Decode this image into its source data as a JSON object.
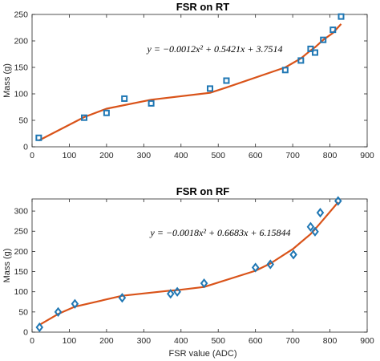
{
  "chart_data": [
    {
      "type": "scatter",
      "title": "FSR on RT",
      "xlabel": "",
      "ylabel": "Mass (g)",
      "xlim": [
        0,
        900
      ],
      "ylim": [
        0,
        250
      ],
      "xticks": [
        0,
        100,
        200,
        300,
        400,
        500,
        600,
        700,
        800,
        900
      ],
      "yticks": [
        0,
        50,
        100,
        150,
        200,
        250
      ],
      "equation": "y = −0.0012x² + 0.5421x + 3.7514",
      "marker": "square",
      "marker_color": "#1f77b4",
      "fit_color": "#d95319",
      "points": [
        [
          18,
          17
        ],
        [
          140,
          55
        ],
        [
          200,
          64
        ],
        [
          248,
          91
        ],
        [
          320,
          82
        ],
        [
          478,
          110
        ],
        [
          522,
          125
        ],
        [
          680,
          145
        ],
        [
          722,
          163
        ],
        [
          748,
          185
        ],
        [
          760,
          178
        ],
        [
          782,
          202
        ],
        [
          808,
          221
        ],
        [
          830,
          246
        ]
      ],
      "fit_line": [
        [
          18,
          12
        ],
        [
          140,
          56
        ],
        [
          200,
          72
        ],
        [
          320,
          89
        ],
        [
          478,
          102
        ],
        [
          522,
          112
        ],
        [
          680,
          150
        ],
        [
          722,
          167
        ],
        [
          748,
          182
        ],
        [
          760,
          188
        ],
        [
          782,
          202
        ],
        [
          808,
          215
        ],
        [
          830,
          232
        ]
      ]
    },
    {
      "type": "scatter",
      "title": "FSR on RF",
      "xlabel": "FSR value (ADC)",
      "ylabel": "Mass (g)",
      "xlim": [
        0,
        900
      ],
      "ylim": [
        0,
        330
      ],
      "xticks": [
        0,
        100,
        200,
        300,
        400,
        500,
        600,
        700,
        800,
        900
      ],
      "yticks": [
        0,
        50,
        100,
        150,
        200,
        250,
        300
      ],
      "equation": "y = −0.0018x² + 0.6683x + 6.15844",
      "marker": "diamond",
      "marker_color": "#1f77b4",
      "fit_color": "#d95319",
      "points": [
        [
          20,
          12
        ],
        [
          70,
          50
        ],
        [
          115,
          70
        ],
        [
          242,
          85
        ],
        [
          372,
          95
        ],
        [
          390,
          100
        ],
        [
          462,
          121
        ],
        [
          600,
          160
        ],
        [
          640,
          168
        ],
        [
          702,
          192
        ],
        [
          748,
          261
        ],
        [
          760,
          249
        ],
        [
          774,
          296
        ],
        [
          822,
          325
        ]
      ],
      "fit_line": [
        [
          20,
          18
        ],
        [
          70,
          45
        ],
        [
          115,
          63
        ],
        [
          242,
          90
        ],
        [
          372,
          103
        ],
        [
          390,
          104
        ],
        [
          462,
          112
        ],
        [
          600,
          152
        ],
        [
          640,
          170
        ],
        [
          702,
          207
        ],
        [
          748,
          243
        ],
        [
          760,
          255
        ],
        [
          774,
          270
        ],
        [
          822,
          322
        ]
      ]
    }
  ]
}
